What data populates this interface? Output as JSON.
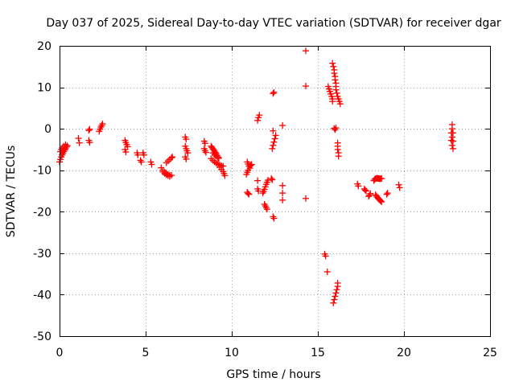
{
  "chart_data": {
    "type": "scatter",
    "title": "Day 037 of 2025, Sidereal Day-to-day VTEC variation (SDTVAR) for receiver dgar",
    "xlabel": "GPS time / hours",
    "ylabel": "SDTVAR / TECUs",
    "xlim": [
      0,
      25
    ],
    "ylim": [
      -50,
      20
    ],
    "xticks": [
      0,
      5,
      10,
      15,
      20,
      25
    ],
    "yticks": [
      -50,
      -40,
      -30,
      -20,
      -10,
      0,
      10,
      20
    ],
    "xtick_labels": [
      "0",
      "5",
      "10",
      "15",
      "20",
      "25"
    ],
    "ytick_labels": [
      "-50",
      "-40",
      "-30",
      "-20",
      "-10",
      "0",
      "10",
      "20"
    ],
    "grid": true,
    "marker": "plus",
    "marker_color": "#ff0000",
    "series": [
      {
        "name": "SDTVAR",
        "points": [
          [
            0.0,
            -8.0
          ],
          [
            0.05,
            -7.4
          ],
          [
            0.1,
            -6.8
          ],
          [
            0.15,
            -6.3
          ],
          [
            0.2,
            -5.9
          ],
          [
            0.25,
            -5.5
          ],
          [
            0.3,
            -5.1
          ],
          [
            0.35,
            -4.8
          ],
          [
            0.4,
            -4.4
          ],
          [
            0.45,
            -4.1
          ],
          [
            0.05,
            -5.5
          ],
          [
            0.1,
            -5.0
          ],
          [
            0.15,
            -4.6
          ],
          [
            0.25,
            -4.2
          ],
          [
            0.35,
            -3.8
          ],
          [
            1.1,
            -2.3
          ],
          [
            1.15,
            -3.4
          ],
          [
            1.7,
            -0.4
          ],
          [
            1.75,
            -0.1
          ],
          [
            1.7,
            -2.8
          ],
          [
            1.75,
            -3.3
          ],
          [
            2.3,
            -0.6
          ],
          [
            2.35,
            -0.1
          ],
          [
            2.4,
            0.4
          ],
          [
            2.45,
            0.8
          ],
          [
            2.5,
            1.2
          ],
          [
            3.8,
            -2.8
          ],
          [
            3.85,
            -3.3
          ],
          [
            3.9,
            -3.8
          ],
          [
            3.95,
            -4.3
          ],
          [
            3.8,
            -5.0
          ],
          [
            3.85,
            -5.6
          ],
          [
            4.5,
            -5.8
          ],
          [
            4.55,
            -6.3
          ],
          [
            4.7,
            -7.6
          ],
          [
            4.75,
            -8.0
          ],
          [
            4.85,
            -5.8
          ],
          [
            4.9,
            -6.3
          ],
          [
            5.3,
            -8.0
          ],
          [
            5.35,
            -8.6
          ],
          [
            5.9,
            -9.4
          ],
          [
            6.0,
            -10.0
          ],
          [
            6.1,
            -10.4
          ],
          [
            6.2,
            -10.7
          ],
          [
            6.3,
            -11.0
          ],
          [
            6.4,
            -11.2
          ],
          [
            6.5,
            -11.2
          ],
          [
            6.0,
            -10.4
          ],
          [
            6.1,
            -10.8
          ],
          [
            6.2,
            -11.1
          ],
          [
            6.3,
            -11.3
          ],
          [
            6.4,
            -11.5
          ],
          [
            6.2,
            -8.2
          ],
          [
            6.3,
            -7.8
          ],
          [
            6.4,
            -7.4
          ],
          [
            6.5,
            -7.0
          ],
          [
            6.55,
            -6.8
          ],
          [
            7.3,
            -2.0
          ],
          [
            7.35,
            -2.5
          ],
          [
            7.3,
            -4.2
          ],
          [
            7.35,
            -4.8
          ],
          [
            7.4,
            -5.3
          ],
          [
            7.45,
            -5.8
          ],
          [
            7.3,
            -6.8
          ],
          [
            7.35,
            -7.3
          ],
          [
            8.4,
            -3.0
          ],
          [
            8.45,
            -3.5
          ],
          [
            8.4,
            -4.8
          ],
          [
            8.45,
            -5.3
          ],
          [
            8.5,
            -5.7
          ],
          [
            8.8,
            -4.2
          ],
          [
            8.85,
            -4.5
          ],
          [
            8.9,
            -4.8
          ],
          [
            8.95,
            -5.1
          ],
          [
            9.0,
            -5.4
          ],
          [
            9.05,
            -5.7
          ],
          [
            9.1,
            -6.0
          ],
          [
            9.15,
            -6.4
          ],
          [
            9.2,
            -6.8
          ],
          [
            9.25,
            -7.1
          ],
          [
            8.9,
            -5.8
          ],
          [
            9.0,
            -6.2
          ],
          [
            9.1,
            -6.6
          ],
          [
            9.2,
            -7.0
          ],
          [
            8.8,
            -7.2
          ],
          [
            8.9,
            -7.6
          ],
          [
            9.0,
            -8.0
          ],
          [
            9.1,
            -8.3
          ],
          [
            9.2,
            -8.5
          ],
          [
            9.3,
            -8.7
          ],
          [
            9.4,
            -8.9
          ],
          [
            9.5,
            -9.0
          ],
          [
            9.3,
            -9.3
          ],
          [
            9.4,
            -9.8
          ],
          [
            9.5,
            -10.3
          ],
          [
            9.55,
            -10.8
          ],
          [
            9.6,
            -11.3
          ],
          [
            10.9,
            -8.0
          ],
          [
            10.95,
            -8.5
          ],
          [
            11.0,
            -9.0
          ],
          [
            11.05,
            -9.5
          ],
          [
            10.95,
            -10.0
          ],
          [
            10.9,
            -10.5
          ],
          [
            10.85,
            -11.0
          ],
          [
            11.05,
            -9.0
          ],
          [
            11.1,
            -8.8
          ],
          [
            11.15,
            -8.6
          ],
          [
            10.9,
            -15.3
          ],
          [
            10.95,
            -15.6
          ],
          [
            11.0,
            -15.8
          ],
          [
            11.5,
            -14.5
          ],
          [
            11.55,
            -15.0
          ],
          [
            11.5,
            -12.5
          ],
          [
            11.5,
            2.0
          ],
          [
            11.55,
            2.7
          ],
          [
            11.6,
            3.3
          ],
          [
            11.8,
            -15.5
          ],
          [
            11.85,
            -15.1
          ],
          [
            11.9,
            -14.6
          ],
          [
            11.95,
            -14.0
          ],
          [
            12.0,
            -13.4
          ],
          [
            12.05,
            -12.9
          ],
          [
            12.1,
            -12.4
          ],
          [
            12.3,
            -12.0
          ],
          [
            12.35,
            -12.3
          ],
          [
            11.9,
            -18.2
          ],
          [
            11.95,
            -18.6
          ],
          [
            12.0,
            -19.0
          ],
          [
            12.05,
            -19.4
          ],
          [
            12.4,
            -21.2
          ],
          [
            12.45,
            -21.6
          ],
          [
            12.35,
            -4.8
          ],
          [
            12.4,
            -4.0
          ],
          [
            12.45,
            -3.2
          ],
          [
            12.5,
            -2.4
          ],
          [
            12.55,
            -1.6
          ],
          [
            12.4,
            8.5
          ],
          [
            12.45,
            8.8
          ],
          [
            12.4,
            -0.5
          ],
          [
            12.95,
            0.8
          ],
          [
            12.95,
            -13.7
          ],
          [
            12.95,
            -15.5
          ],
          [
            12.95,
            -17.2
          ],
          [
            14.3,
            18.8
          ],
          [
            14.3,
            10.3
          ],
          [
            14.3,
            -16.8
          ],
          [
            15.4,
            -30.2
          ],
          [
            15.45,
            -30.7
          ],
          [
            15.55,
            -34.5
          ],
          [
            15.9,
            -42.0
          ],
          [
            15.95,
            -41.2
          ],
          [
            16.0,
            -40.4
          ],
          [
            16.05,
            -39.6
          ],
          [
            16.1,
            -38.8
          ],
          [
            16.15,
            -38.0
          ],
          [
            16.15,
            -37.2
          ],
          [
            15.6,
            10.2
          ],
          [
            15.65,
            9.6
          ],
          [
            15.7,
            9.0
          ],
          [
            15.75,
            8.4
          ],
          [
            15.8,
            7.8
          ],
          [
            15.85,
            7.2
          ],
          [
            15.85,
            6.6
          ],
          [
            15.85,
            15.8
          ],
          [
            15.9,
            15.0
          ],
          [
            15.95,
            14.2
          ],
          [
            15.95,
            13.4
          ],
          [
            16.0,
            12.6
          ],
          [
            16.0,
            11.8
          ],
          [
            16.05,
            11.0
          ],
          [
            16.05,
            10.2
          ],
          [
            16.05,
            9.4
          ],
          [
            16.1,
            8.6
          ],
          [
            16.15,
            7.8
          ],
          [
            16.2,
            7.2
          ],
          [
            16.25,
            6.6
          ],
          [
            16.3,
            6.0
          ],
          [
            15.95,
            0.1
          ],
          [
            16.0,
            -0.2
          ],
          [
            16.05,
            0.2
          ],
          [
            16.15,
            -3.4
          ],
          [
            16.15,
            -4.2
          ],
          [
            16.15,
            -5.0
          ],
          [
            16.2,
            -5.8
          ],
          [
            16.2,
            -6.6
          ],
          [
            17.3,
            -13.3
          ],
          [
            17.35,
            -13.8
          ],
          [
            17.7,
            -14.5
          ],
          [
            17.75,
            -14.8
          ],
          [
            17.8,
            -15.0
          ],
          [
            17.95,
            -16.3
          ],
          [
            18.0,
            -16.0
          ],
          [
            18.05,
            -15.6
          ],
          [
            18.25,
            -12.5
          ],
          [
            18.3,
            -12.2
          ],
          [
            18.35,
            -12.0
          ],
          [
            18.4,
            -12.0
          ],
          [
            18.45,
            -11.9
          ],
          [
            18.5,
            -12.0
          ],
          [
            18.55,
            -12.0
          ],
          [
            18.6,
            -12.1
          ],
          [
            18.65,
            -12.0
          ],
          [
            18.7,
            -12.0
          ],
          [
            18.35,
            -15.9
          ],
          [
            18.4,
            -16.2
          ],
          [
            18.45,
            -16.5
          ],
          [
            18.5,
            -16.8
          ],
          [
            18.55,
            -17.0
          ],
          [
            18.6,
            -17.2
          ],
          [
            18.65,
            -17.4
          ],
          [
            18.7,
            -17.6
          ],
          [
            19.0,
            -15.8
          ],
          [
            19.05,
            -15.5
          ],
          [
            19.7,
            -13.5
          ],
          [
            19.75,
            -14.2
          ],
          [
            22.8,
            1.0
          ],
          [
            22.8,
            0.0
          ],
          [
            22.85,
            -1.0
          ],
          [
            22.8,
            -2.0
          ],
          [
            22.85,
            -3.0
          ],
          [
            22.8,
            -4.0
          ],
          [
            22.85,
            -4.8
          ],
          [
            22.75,
            -1.0
          ],
          [
            22.75,
            -2.8
          ]
        ]
      }
    ]
  }
}
